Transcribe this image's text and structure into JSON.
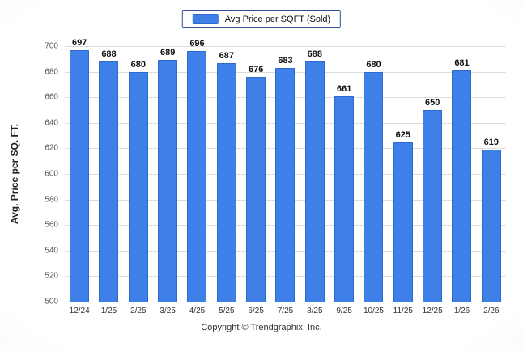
{
  "chart_data": {
    "type": "bar",
    "title": "",
    "legend": "Avg Price per SQFT (Sold)",
    "ylabel": "Avg. Price per SQ. FT.",
    "xlabel": "",
    "footer": "Copyright © Trendgraphix, Inc.",
    "categories": [
      "12/24",
      "1/25",
      "2/25",
      "3/25",
      "4/25",
      "5/25",
      "6/25",
      "7/25",
      "8/25",
      "9/25",
      "10/25",
      "11/25",
      "12/25",
      "1/26",
      "2/26"
    ],
    "values": [
      697,
      688,
      680,
      689,
      696,
      687,
      676,
      683,
      688,
      661,
      680,
      625,
      650,
      681,
      619
    ],
    "ylim": [
      500,
      700
    ],
    "ytick_step": 20,
    "bar_color": "#3f80e8",
    "grid": true,
    "legend_position": "top-center"
  }
}
